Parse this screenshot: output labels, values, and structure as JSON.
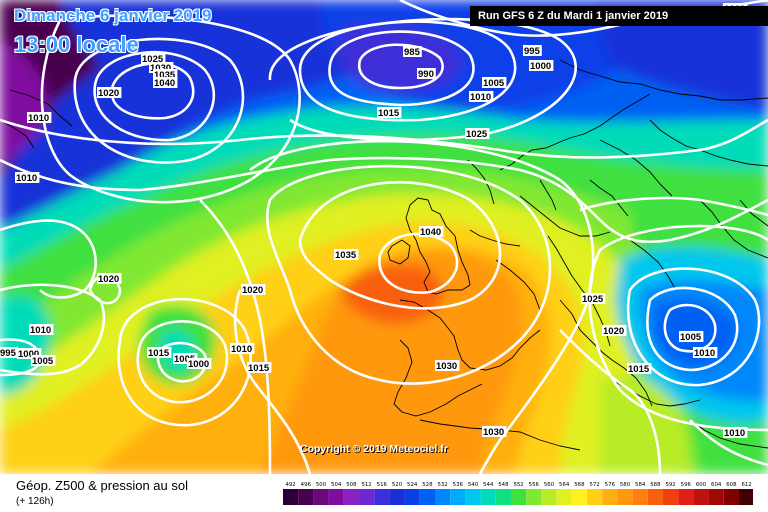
{
  "header": {
    "date": "Dimanche 6 janvier 2019",
    "time": "13:00 locale",
    "run": "Run GFS 6 Z du Mardi 1 janvier 2019"
  },
  "copyright": "Copyright © 2019 Meteociel.fr",
  "footer": {
    "param": "Géop. Z500 & pression au sol",
    "lead": "(+ 126h)"
  },
  "colorscale": {
    "labels": [
      "492",
      "496",
      "500",
      "504",
      "508",
      "512",
      "516",
      "520",
      "524",
      "528",
      "532",
      "536",
      "540",
      "544",
      "548",
      "552",
      "556",
      "560",
      "564",
      "568",
      "572",
      "576",
      "580",
      "584",
      "588",
      "592",
      "596",
      "600",
      "604",
      "608",
      "612"
    ],
    "colors": [
      "#2a0036",
      "#480050",
      "#6a0a7a",
      "#800da0",
      "#8a22c2",
      "#6a2ad0",
      "#3c2ed8",
      "#1830d8",
      "#0a40e8",
      "#0060f4",
      "#0088fa",
      "#00aafc",
      "#00c8ec",
      "#00dcb8",
      "#10e080",
      "#40e040",
      "#80e830",
      "#b8ec28",
      "#e0f020",
      "#fff020",
      "#ffd018",
      "#ffb010",
      "#ff9810",
      "#ff8010",
      "#f86010",
      "#f04010",
      "#e02018",
      "#c01010",
      "#a00808",
      "#800000",
      "#400000"
    ]
  },
  "isobars": [
    {
      "text": "1025"
    },
    {
      "text": "1030"
    },
    {
      "text": "1035"
    },
    {
      "text": "1040"
    },
    {
      "text": "1020"
    },
    {
      "text": "1010"
    },
    {
      "text": "1010"
    },
    {
      "text": "985"
    },
    {
      "text": "990"
    },
    {
      "text": "995"
    },
    {
      "text": "1000"
    },
    {
      "text": "1005"
    },
    {
      "text": "1010"
    },
    {
      "text": "1015"
    },
    {
      "text": "1025"
    },
    {
      "text": "1040"
    },
    {
      "text": "1035"
    },
    {
      "text": "1020"
    },
    {
      "text": "1020"
    },
    {
      "text": "1010"
    },
    {
      "text": "995"
    },
    {
      "text": "1000"
    },
    {
      "text": "1005"
    },
    {
      "text": "1015"
    },
    {
      "text": "1005"
    },
    {
      "text": "1000"
    },
    {
      "text": "1010"
    },
    {
      "text": "1015"
    },
    {
      "text": "1030"
    },
    {
      "text": "1030"
    },
    {
      "text": "1025"
    },
    {
      "text": "1020"
    },
    {
      "text": "1015"
    },
    {
      "text": "1005"
    },
    {
      "text": "1010"
    },
    {
      "text": "1010"
    },
    {
      "text": "1000"
    }
  ]
}
